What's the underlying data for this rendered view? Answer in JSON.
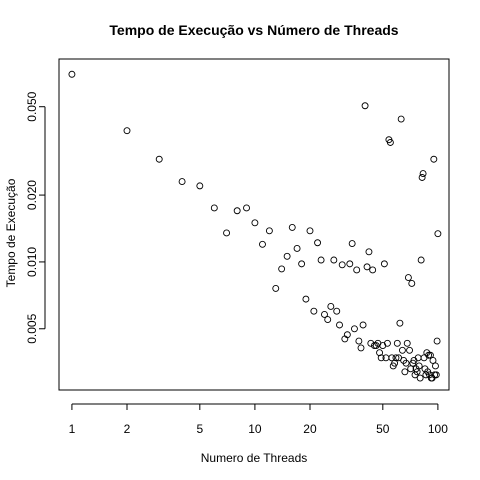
{
  "chart_data": {
    "type": "scatter",
    "title": "Tempo de Execução vs Número de Threads",
    "xlabel": "Numero de Threads",
    "ylabel": "Tempo de Execução",
    "x_scale": "log",
    "y_scale": "log",
    "xlim": [
      0.85,
      115
    ],
    "ylim": [
      0.00265,
      0.082
    ],
    "x_ticks": [
      1,
      2,
      5,
      10,
      20,
      50,
      100
    ],
    "x_tick_labels": [
      "1",
      "2",
      "5",
      "10",
      "20",
      "50",
      "100"
    ],
    "y_ticks": [
      0.005,
      0.01,
      0.02,
      0.05
    ],
    "y_tick_labels": [
      "0.005",
      "0.010",
      "0.020",
      "0.050"
    ],
    "grid": false,
    "legend": "none",
    "marker": "open-circle",
    "color": "#000000",
    "series": [
      {
        "x": [
          1,
          2,
          3,
          4,
          5,
          6,
          7,
          8,
          9,
          10,
          11,
          12,
          13,
          14,
          15,
          16,
          17,
          18,
          19,
          20,
          21,
          22,
          23,
          24,
          25,
          26,
          27,
          28,
          29,
          30,
          31,
          32,
          33,
          34,
          35,
          36,
          37,
          38,
          39,
          40,
          41,
          42,
          43,
          44,
          45,
          46,
          47,
          48,
          49,
          50,
          51,
          52,
          53,
          54,
          55,
          56,
          57,
          58,
          59,
          60,
          61,
          62,
          63,
          64,
          65,
          66,
          67,
          68,
          69,
          70,
          71,
          72,
          73,
          74,
          75,
          76,
          77,
          78,
          79,
          80,
          81,
          82,
          83,
          84,
          85,
          86,
          87,
          88,
          89,
          90,
          91,
          92,
          93,
          94,
          95,
          96,
          97,
          98,
          99,
          100
        ],
        "y": [
          0.07,
          0.039,
          0.029,
          0.023,
          0.022,
          0.0175,
          0.0135,
          0.017,
          0.0175,
          0.015,
          0.012,
          0.0138,
          0.0076,
          0.0093,
          0.0106,
          0.0143,
          0.0115,
          0.0098,
          0.0068,
          0.0138,
          0.006,
          0.0122,
          0.0102,
          0.0058,
          0.0055,
          0.0063,
          0.0102,
          0.006,
          0.0052,
          0.0097,
          0.0045,
          0.0047,
          0.0098,
          0.0121,
          0.005,
          0.0092,
          0.0044,
          0.0041,
          0.0052,
          0.0505,
          0.0095,
          0.0111,
          0.0043,
          0.0092,
          0.0042,
          0.0042,
          0.0043,
          0.0039,
          0.0037,
          0.0042,
          0.0098,
          0.0037,
          0.0043,
          0.0355,
          0.0345,
          0.0037,
          0.0034,
          0.0035,
          0.0037,
          0.0043,
          0.0037,
          0.0053,
          0.044,
          0.004,
          0.0036,
          0.0032,
          0.0035,
          0.0043,
          0.0085,
          0.004,
          0.0033,
          0.008,
          0.0035,
          0.0036,
          0.0031,
          0.0033,
          0.0032,
          0.0037,
          0.0034,
          0.003,
          0.0102,
          0.024,
          0.025,
          0.0037,
          0.0033,
          0.0031,
          0.0039,
          0.0032,
          0.0038,
          0.0031,
          0.0038,
          0.003,
          0.003,
          0.0036,
          0.029,
          0.0031,
          0.0034,
          0.0031,
          0.0044,
          0.0134
        ]
      }
    ]
  }
}
